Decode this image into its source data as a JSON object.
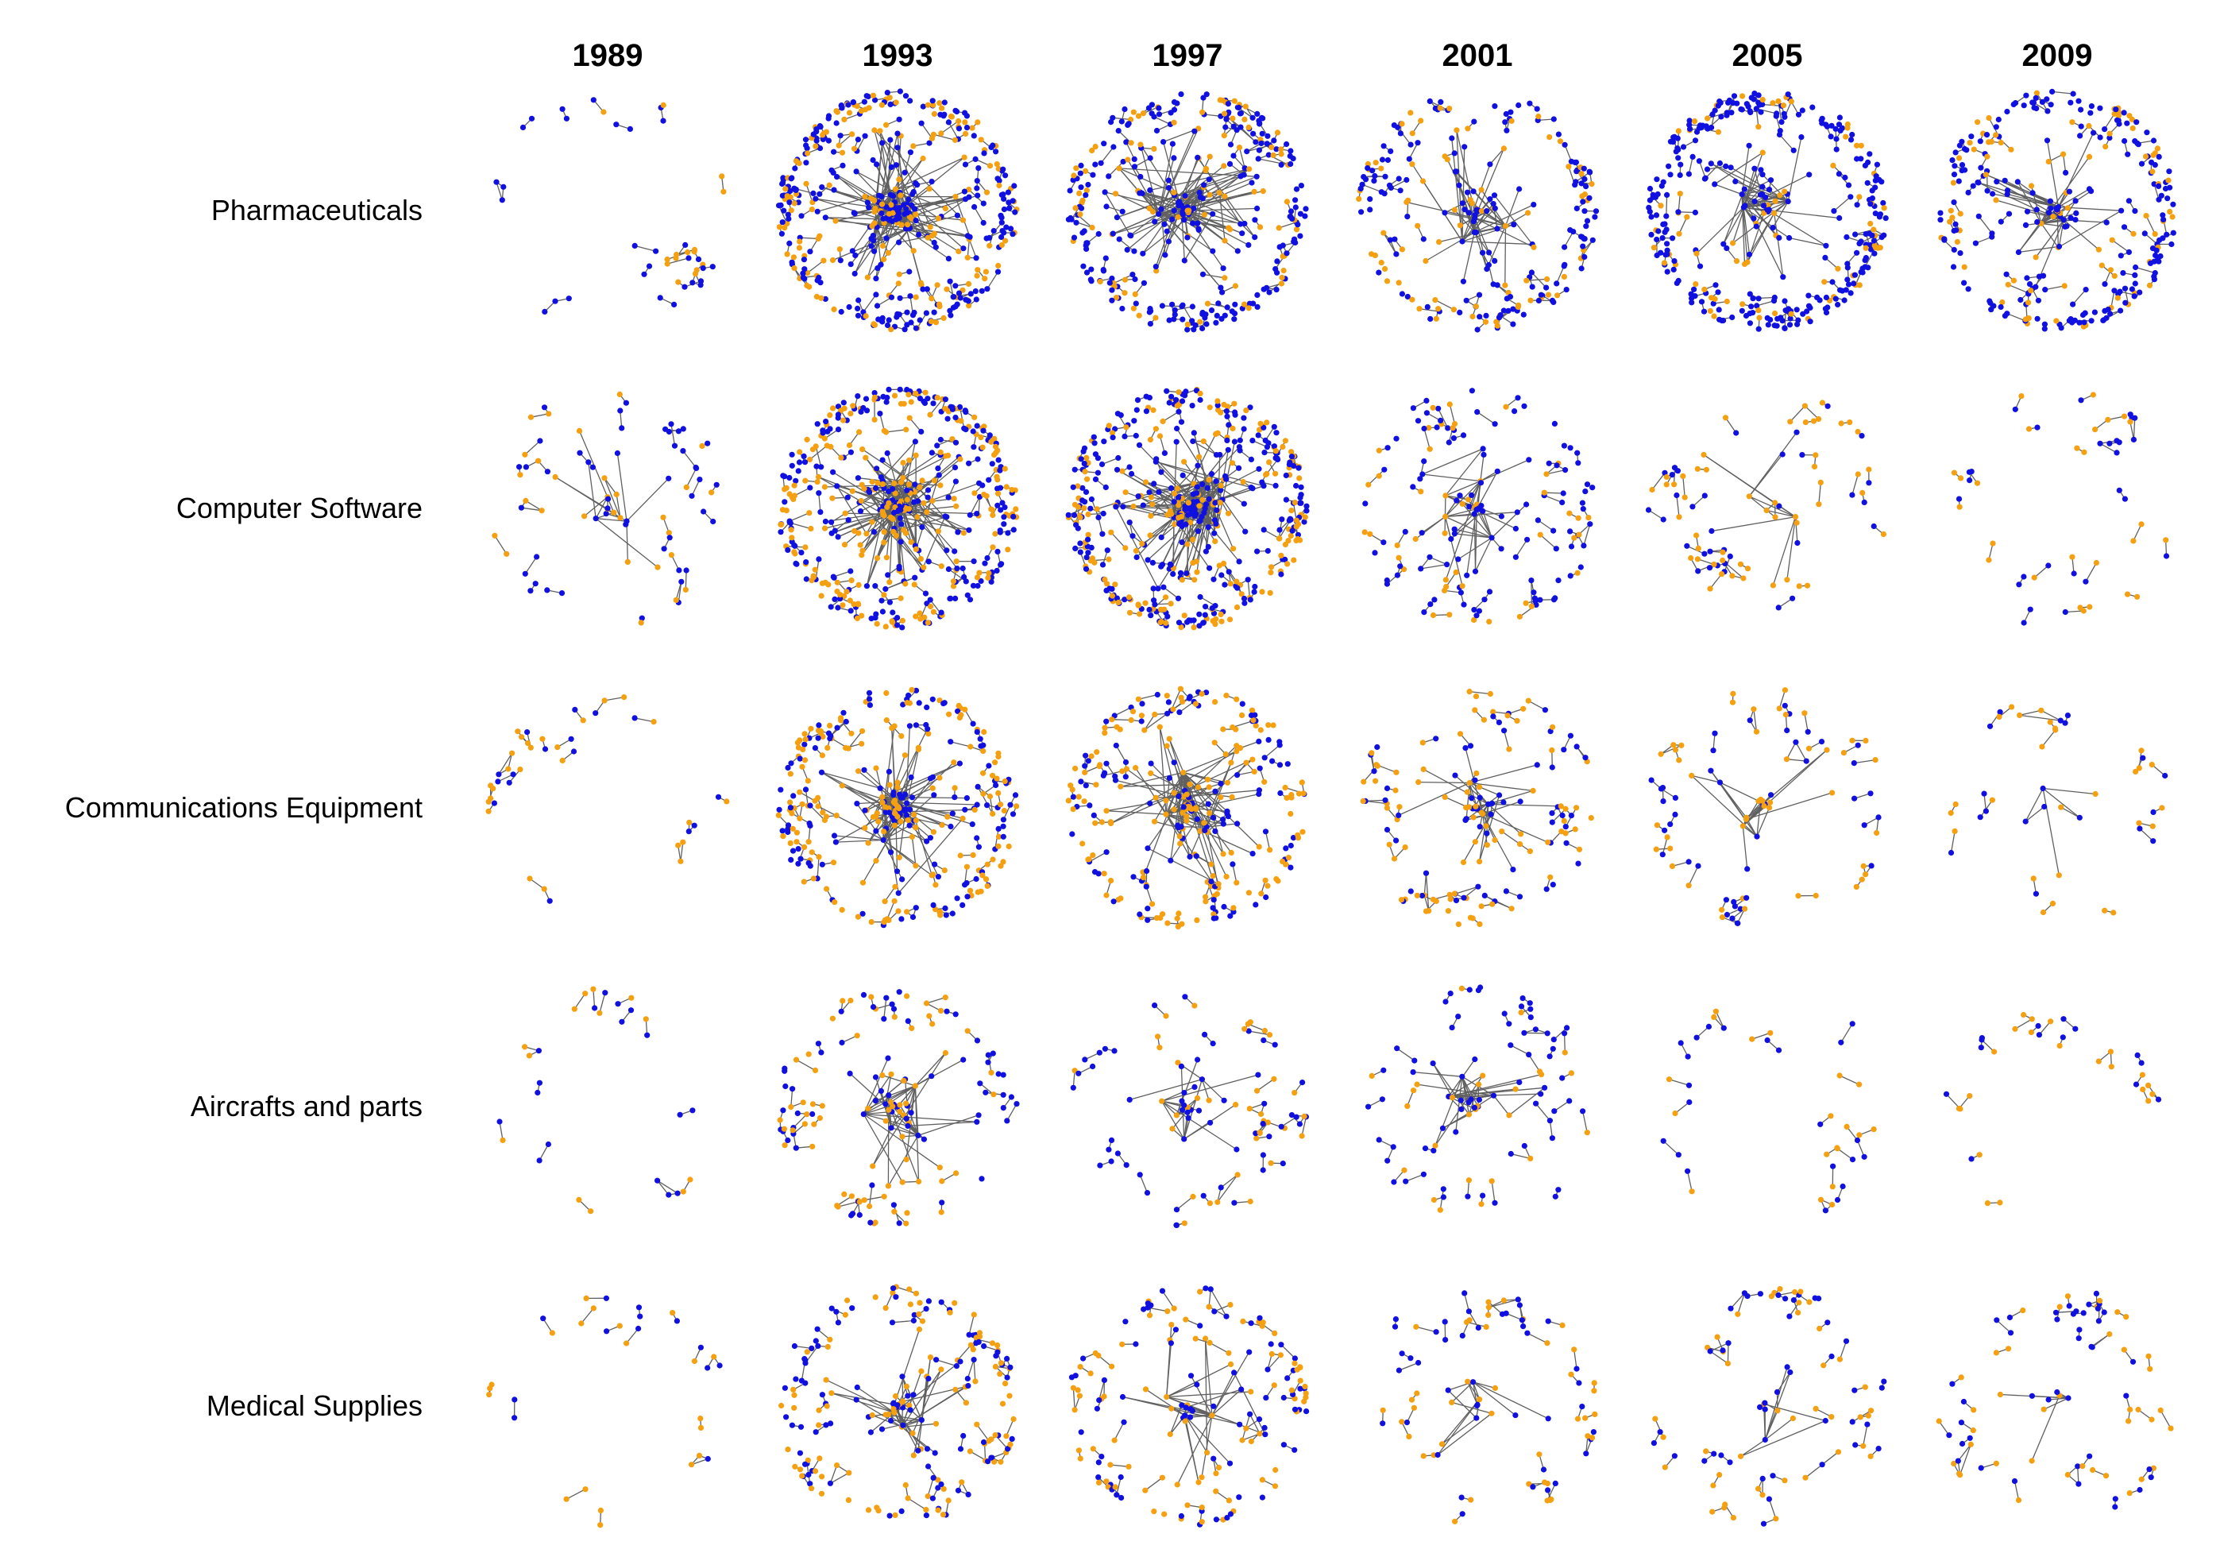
{
  "figure": {
    "years": [
      "1989",
      "1993",
      "1997",
      "2001",
      "2005",
      "2009"
    ],
    "industries": [
      "Pharmaceuticals",
      "Computer Software",
      "Communications Equipment",
      "Aircrafts and parts",
      "Medical Supplies"
    ],
    "colors": {
      "node_blue": "#1010e0",
      "node_orange": "#f5a010",
      "edge": "#606060",
      "background": "#ffffff"
    },
    "panel_density": [
      [
        0.12,
        1.0,
        0.8,
        0.6,
        0.95,
        0.8
      ],
      [
        0.22,
        1.0,
        1.0,
        0.45,
        0.3,
        0.18
      ],
      [
        0.08,
        0.7,
        0.62,
        0.4,
        0.3,
        0.1
      ],
      [
        0.03,
        0.4,
        0.3,
        0.28,
        0.1,
        0.05
      ],
      [
        0.04,
        0.55,
        0.48,
        0.3,
        0.32,
        0.32
      ]
    ],
    "panel_hub_strength": [
      [
        0.0,
        0.9,
        0.7,
        0.5,
        0.3,
        0.35
      ],
      [
        0.4,
        0.95,
        0.95,
        0.45,
        0.2,
        0.1
      ],
      [
        0.2,
        0.9,
        0.85,
        0.6,
        0.3,
        0.2
      ],
      [
        0.3,
        0.6,
        0.4,
        0.5,
        0.15,
        0.05
      ],
      [
        0.1,
        0.45,
        0.35,
        0.2,
        0.15,
        0.1
      ]
    ],
    "panel_orange_share": [
      [
        0.35,
        0.35,
        0.3,
        0.35,
        0.2,
        0.3
      ],
      [
        0.45,
        0.45,
        0.4,
        0.35,
        0.55,
        0.55
      ],
      [
        0.55,
        0.6,
        0.6,
        0.55,
        0.5,
        0.45
      ],
      [
        0.55,
        0.45,
        0.4,
        0.35,
        0.45,
        0.5
      ],
      [
        0.6,
        0.5,
        0.5,
        0.55,
        0.5,
        0.45
      ]
    ]
  }
}
